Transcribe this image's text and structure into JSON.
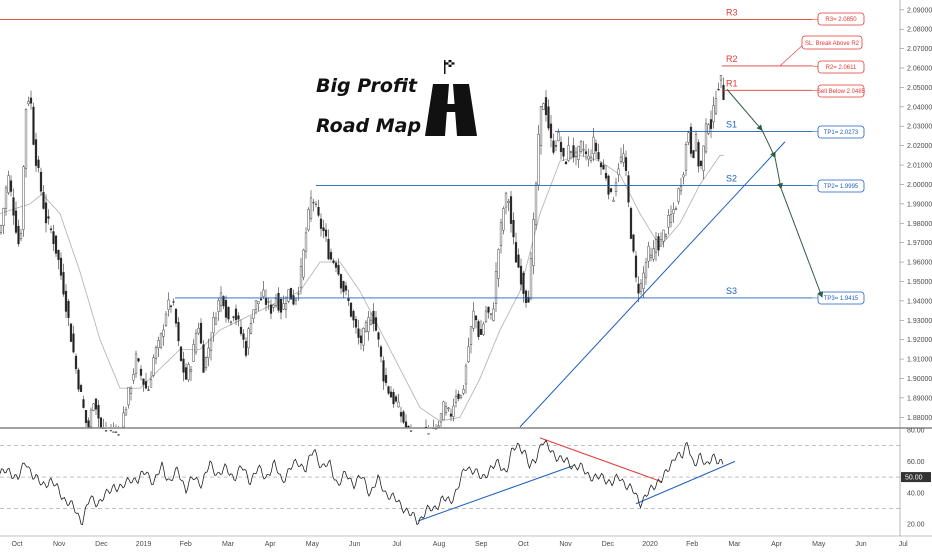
{
  "chart_data": {
    "type": "candlestick",
    "brand": {
      "line1": "Big Profit",
      "line2": "Road Map"
    },
    "price_axis": {
      "ylim": [
        1.875,
        2.093
      ],
      "ticks": [
        "2.09000",
        "2.08000",
        "2.07000",
        "2.06000",
        "2.05000",
        "2.04000",
        "2.03000",
        "2.02000",
        "2.01000",
        "2.00000",
        "1.99000",
        "1.98000",
        "1.97000",
        "1.96000",
        "1.95000",
        "1.94000",
        "1.93000",
        "1.92000",
        "1.91000",
        "1.90000",
        "1.89000",
        "1.88000"
      ]
    },
    "rsi_axis": {
      "ylim": [
        15,
        80
      ],
      "ticks": [
        "80.00",
        "60.00",
        "40.00",
        "20.00"
      ],
      "current": "50.00",
      "levels": [
        70,
        50,
        30
      ]
    },
    "x_axis": {
      "labels": [
        "Oct",
        "Nov",
        "Dec",
        "2019",
        "Feb",
        "Mar",
        "Apr",
        "May",
        "Jun",
        "Jul",
        "Aug",
        "Sep",
        "Oct",
        "Nov",
        "Dec",
        "2020",
        "Feb",
        "Mar",
        "Apr",
        "May",
        "Jun",
        "Jul"
      ]
    },
    "levels": [
      {
        "name": "R3",
        "price": 2.085,
        "color": "#e53935",
        "callout": "R3= 2.0850"
      },
      {
        "name": "R2",
        "price": 2.0611,
        "color": "#e53935",
        "callout": "R2= 2.0611"
      },
      {
        "name": "R1",
        "price": 2.0485,
        "color": "#e53935",
        "callout": "Sell Below 2.0485"
      },
      {
        "name": "S1",
        "price": 2.0273,
        "color": "#1e5fbf",
        "callout": "TP1= 2.0273"
      },
      {
        "name": "S2",
        "price": 1.9995,
        "color": "#1e5fbf",
        "callout": "TP2= 1.9995"
      },
      {
        "name": "S3",
        "price": 1.9415,
        "color": "#1e5fbf",
        "callout": "TP3= 1.9415"
      }
    ],
    "sl_callout": "SL: Break Above R2",
    "price_path": [
      [
        0,
        1.975
      ],
      [
        8,
        2.005
      ],
      [
        14,
        1.985
      ],
      [
        20,
        1.965
      ],
      [
        26,
        2.04
      ],
      [
        30,
        2.048
      ],
      [
        34,
        2.02
      ],
      [
        40,
        2.0
      ],
      [
        46,
        1.982
      ],
      [
        52,
        1.975
      ],
      [
        58,
        1.962
      ],
      [
        64,
        1.945
      ],
      [
        70,
        1.925
      ],
      [
        76,
        1.905
      ],
      [
        82,
        1.888
      ],
      [
        88,
        1.872
      ],
      [
        94,
        1.892
      ],
      [
        100,
        1.876
      ],
      [
        106,
        1.868
      ],
      [
        112,
        1.874
      ],
      [
        118,
        1.87
      ],
      [
        124,
        1.882
      ],
      [
        130,
        1.895
      ],
      [
        136,
        1.91
      ],
      [
        142,
        1.9
      ],
      [
        148,
        1.893
      ],
      [
        154,
        1.912
      ],
      [
        160,
        1.918
      ],
      [
        166,
        1.935
      ],
      [
        172,
        1.94
      ],
      [
        176,
        1.928
      ],
      [
        180,
        1.91
      ],
      [
        186,
        1.9
      ],
      [
        192,
        1.91
      ],
      [
        198,
        1.93
      ],
      [
        204,
        1.905
      ],
      [
        210,
        1.92
      ],
      [
        216,
        1.935
      ],
      [
        222,
        1.945
      ],
      [
        228,
        1.93
      ],
      [
        234,
        1.935
      ],
      [
        240,
        1.925
      ],
      [
        246,
        1.915
      ],
      [
        252,
        1.935
      ],
      [
        258,
        1.94
      ],
      [
        264,
        1.942
      ],
      [
        270,
        1.935
      ],
      [
        276,
        1.942
      ],
      [
        282,
        1.935
      ],
      [
        288,
        1.945
      ],
      [
        294,
        1.94
      ],
      [
        300,
        1.95
      ],
      [
        306,
        1.975
      ],
      [
        312,
        1.995
      ],
      [
        318,
        1.982
      ],
      [
        324,
        1.975
      ],
      [
        330,
        1.962
      ],
      [
        336,
        1.96
      ],
      [
        342,
        1.948
      ],
      [
        348,
        1.94
      ],
      [
        354,
        1.928
      ],
      [
        360,
        1.918
      ],
      [
        366,
        1.925
      ],
      [
        372,
        1.935
      ],
      [
        378,
        1.92
      ],
      [
        384,
        1.9
      ],
      [
        390,
        1.892
      ],
      [
        396,
        1.887
      ],
      [
        402,
        1.88
      ],
      [
        408,
        1.872
      ],
      [
        414,
        1.865
      ],
      [
        420,
        1.863
      ],
      [
        426,
        1.872
      ],
      [
        432,
        1.87
      ],
      [
        438,
        1.875
      ],
      [
        444,
        1.885
      ],
      [
        450,
        1.88
      ],
      [
        456,
        1.893
      ],
      [
        462,
        1.89
      ],
      [
        468,
        1.915
      ],
      [
        474,
        1.935
      ],
      [
        480,
        1.92
      ],
      [
        486,
        1.935
      ],
      [
        492,
        1.93
      ],
      [
        498,
        1.965
      ],
      [
        504,
        1.99
      ],
      [
        508,
        1.995
      ],
      [
        512,
        1.975
      ],
      [
        516,
        1.962
      ],
      [
        520,
        1.955
      ],
      [
        524,
        1.945
      ],
      [
        528,
        1.94
      ],
      [
        532,
        1.965
      ],
      [
        536,
        2.0
      ],
      [
        540,
        2.035
      ],
      [
        544,
        2.045
      ],
      [
        548,
        2.032
      ],
      [
        552,
        2.018
      ],
      [
        558,
        2.025
      ],
      [
        564,
        2.01
      ],
      [
        570,
        2.02
      ],
      [
        576,
        2.013
      ],
      [
        582,
        2.02
      ],
      [
        588,
        2.012
      ],
      [
        594,
        2.022
      ],
      [
        600,
        2.01
      ],
      [
        606,
        2.005
      ],
      [
        612,
        1.99
      ],
      [
        618,
        2.01
      ],
      [
        624,
        2.015
      ],
      [
        628,
        1.992
      ],
      [
        632,
        1.97
      ],
      [
        636,
        1.95
      ],
      [
        640,
        1.945
      ],
      [
        644,
        1.955
      ],
      [
        648,
        1.965
      ],
      [
        652,
        1.96
      ],
      [
        656,
        1.972
      ],
      [
        660,
        1.968
      ],
      [
        664,
        1.975
      ],
      [
        670,
        1.982
      ],
      [
        676,
        1.99
      ],
      [
        680,
        2.0
      ],
      [
        684,
        2.01
      ],
      [
        688,
        2.03
      ],
      [
        692,
        2.015
      ],
      [
        696,
        2.022
      ],
      [
        700,
        2.005
      ],
      [
        704,
        2.02
      ],
      [
        708,
        2.035
      ],
      [
        712,
        2.03
      ],
      [
        716,
        2.048
      ],
      [
        720,
        2.055
      ],
      [
        724,
        2.045
      ]
    ],
    "rsi_path": [
      [
        0,
        52
      ],
      [
        10,
        54
      ],
      [
        18,
        49
      ],
      [
        26,
        60
      ],
      [
        34,
        50
      ],
      [
        42,
        45
      ],
      [
        50,
        48
      ],
      [
        58,
        42
      ],
      [
        66,
        35
      ],
      [
        74,
        30
      ],
      [
        82,
        22
      ],
      [
        90,
        36
      ],
      [
        98,
        34
      ],
      [
        106,
        38
      ],
      [
        114,
        45
      ],
      [
        122,
        42
      ],
      [
        130,
        50
      ],
      [
        138,
        47
      ],
      [
        146,
        55
      ],
      [
        154,
        45
      ],
      [
        162,
        58
      ],
      [
        170,
        46
      ],
      [
        178,
        55
      ],
      [
        186,
        42
      ],
      [
        194,
        50
      ],
      [
        202,
        46
      ],
      [
        210,
        58
      ],
      [
        218,
        52
      ],
      [
        226,
        55
      ],
      [
        234,
        50
      ],
      [
        242,
        56
      ],
      [
        250,
        48
      ],
      [
        258,
        55
      ],
      [
        266,
        50
      ],
      [
        274,
        58
      ],
      [
        282,
        48
      ],
      [
        290,
        55
      ],
      [
        298,
        60
      ],
      [
        306,
        55
      ],
      [
        314,
        68
      ],
      [
        322,
        56
      ],
      [
        330,
        58
      ],
      [
        338,
        45
      ],
      [
        346,
        52
      ],
      [
        354,
        46
      ],
      [
        362,
        50
      ],
      [
        370,
        40
      ],
      [
        378,
        48
      ],
      [
        386,
        40
      ],
      [
        394,
        36
      ],
      [
        402,
        32
      ],
      [
        410,
        26
      ],
      [
        418,
        22
      ],
      [
        426,
        28
      ],
      [
        434,
        30
      ],
      [
        442,
        36
      ],
      [
        450,
        34
      ],
      [
        458,
        44
      ],
      [
        466,
        56
      ],
      [
        474,
        55
      ],
      [
        482,
        48
      ],
      [
        490,
        56
      ],
      [
        498,
        58
      ],
      [
        506,
        54
      ],
      [
        512,
        66
      ],
      [
        518,
        70
      ],
      [
        524,
        68
      ],
      [
        530,
        55
      ],
      [
        536,
        62
      ],
      [
        542,
        74
      ],
      [
        548,
        68
      ],
      [
        556,
        64
      ],
      [
        564,
        60
      ],
      [
        572,
        58
      ],
      [
        580,
        56
      ],
      [
        588,
        52
      ],
      [
        596,
        49
      ],
      [
        604,
        50
      ],
      [
        612,
        46
      ],
      [
        620,
        50
      ],
      [
        628,
        44
      ],
      [
        634,
        40
      ],
      [
        640,
        34
      ],
      [
        646,
        38
      ],
      [
        652,
        42
      ],
      [
        658,
        48
      ],
      [
        664,
        50
      ],
      [
        670,
        56
      ],
      [
        676,
        66
      ],
      [
        682,
        62
      ],
      [
        688,
        72
      ],
      [
        694,
        58
      ],
      [
        700,
        62
      ],
      [
        706,
        58
      ],
      [
        712,
        64
      ],
      [
        718,
        58
      ],
      [
        724,
        60
      ]
    ],
    "trendlines": [
      {
        "name": "price-uptrend",
        "from": [
          520,
          1.875
        ],
        "to": [
          785,
          2.022
        ],
        "color": "#1e5fbf"
      },
      {
        "name": "rsi-support-1",
        "from": [
          418,
          22
        ],
        "to": [
          572,
          57
        ],
        "color": "#1e5fbf"
      },
      {
        "name": "rsi-support-2",
        "from": [
          636,
          33
        ],
        "to": [
          735,
          60
        ],
        "color": "#1e5fbf"
      },
      {
        "name": "rsi-resistance",
        "from": [
          540,
          75
        ],
        "to": [
          662,
          47
        ],
        "color": "#e53935"
      }
    ],
    "projection": [
      [
        727,
        2.049
      ],
      [
        762,
        2.028
      ],
      [
        775,
        2.014
      ],
      [
        781,
        1.998
      ],
      [
        822,
        1.942
      ]
    ],
    "ma_path": [
      [
        0,
        1.985
      ],
      [
        30,
        1.99
      ],
      [
        42,
        1.995
      ],
      [
        60,
        1.985
      ],
      [
        80,
        1.955
      ],
      [
        100,
        1.92
      ],
      [
        120,
        1.895
      ],
      [
        140,
        1.895
      ],
      [
        160,
        1.905
      ],
      [
        180,
        1.915
      ],
      [
        200,
        1.915
      ],
      [
        220,
        1.925
      ],
      [
        240,
        1.93
      ],
      [
        260,
        1.935
      ],
      [
        280,
        1.94
      ],
      [
        300,
        1.945
      ],
      [
        320,
        1.96
      ],
      [
        340,
        1.96
      ],
      [
        360,
        1.945
      ],
      [
        380,
        1.925
      ],
      [
        400,
        1.905
      ],
      [
        420,
        1.885
      ],
      [
        440,
        1.878
      ],
      [
        460,
        1.88
      ],
      [
        480,
        1.9
      ],
      [
        500,
        1.925
      ],
      [
        520,
        1.945
      ],
      [
        540,
        1.985
      ],
      [
        560,
        2.012
      ],
      [
        580,
        2.015
      ],
      [
        600,
        2.012
      ],
      [
        620,
        2.005
      ],
      [
        640,
        1.985
      ],
      [
        660,
        1.968
      ],
      [
        680,
        1.98
      ],
      [
        700,
        2.0
      ],
      [
        720,
        2.015
      ]
    ]
  }
}
